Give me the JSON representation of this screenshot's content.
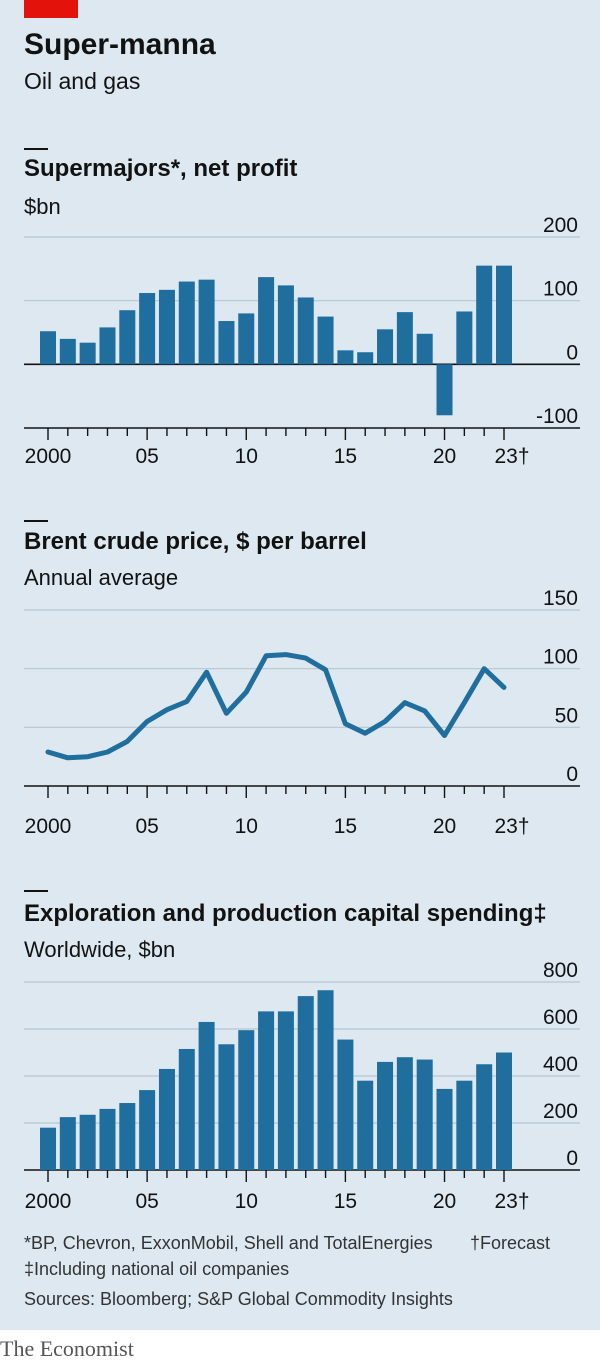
{
  "header": {
    "title": "Super-manna",
    "subtitle": "Oil and gas"
  },
  "chart_data": [
    {
      "type": "bar",
      "title": "Supermajors*, net profit",
      "ylabel": "$bn",
      "x": [
        2000,
        2001,
        2002,
        2003,
        2004,
        2005,
        2006,
        2007,
        2008,
        2009,
        2010,
        2011,
        2012,
        2013,
        2014,
        2015,
        2016,
        2017,
        2018,
        2019,
        2020,
        2021,
        2022,
        2023
      ],
      "values": [
        52,
        40,
        34,
        58,
        85,
        112,
        117,
        130,
        133,
        68,
        80,
        137,
        124,
        105,
        75,
        22,
        19,
        55,
        82,
        48,
        -80,
        83,
        155,
        155
      ],
      "ylim": [
        -100,
        200
      ],
      "yticks": [
        200,
        100,
        0,
        -100
      ],
      "ytick_labels": [
        "200",
        "100",
        "0",
        "-100"
      ],
      "xtick_labels": [
        "2000",
        "05",
        "10",
        "15",
        "20",
        "23†"
      ],
      "xtick_values": [
        2000,
        2005,
        2010,
        2015,
        2020,
        2023
      ],
      "color": "#1f6e9e",
      "grid": true
    },
    {
      "type": "line",
      "title": "Brent crude price, $ per barrel",
      "subtitle": "Annual average",
      "x": [
        2000,
        2001,
        2002,
        2003,
        2004,
        2005,
        2006,
        2007,
        2008,
        2009,
        2010,
        2011,
        2012,
        2013,
        2014,
        2015,
        2016,
        2017,
        2018,
        2019,
        2020,
        2021,
        2022,
        2023
      ],
      "values": [
        29,
        24,
        25,
        29,
        38,
        55,
        65,
        72,
        97,
        62,
        80,
        111,
        112,
        109,
        99,
        53,
        45,
        55,
        71,
        64,
        43,
        71,
        100,
        84
      ],
      "ylim": [
        0,
        150
      ],
      "yticks": [
        150,
        100,
        50,
        0
      ],
      "ytick_labels": [
        "150",
        "100",
        "50",
        "0"
      ],
      "xtick_labels": [
        "2000",
        "05",
        "10",
        "15",
        "20",
        "23†"
      ],
      "xtick_values": [
        2000,
        2005,
        2010,
        2015,
        2020,
        2023
      ],
      "color": "#1f6e9e",
      "grid": true
    },
    {
      "type": "bar",
      "title": "Exploration and production capital spending‡",
      "subtitle": "Worldwide, $bn",
      "x": [
        2000,
        2001,
        2002,
        2003,
        2004,
        2005,
        2006,
        2007,
        2008,
        2009,
        2010,
        2011,
        2012,
        2013,
        2014,
        2015,
        2016,
        2017,
        2018,
        2019,
        2020,
        2021,
        2022,
        2023
      ],
      "values": [
        180,
        225,
        235,
        260,
        285,
        340,
        430,
        515,
        630,
        535,
        595,
        675,
        675,
        740,
        765,
        555,
        380,
        460,
        480,
        470,
        345,
        380,
        450,
        500
      ],
      "ylim": [
        0,
        800
      ],
      "yticks": [
        800,
        600,
        400,
        200,
        0
      ],
      "ytick_labels": [
        "800",
        "600",
        "400",
        "200",
        "0"
      ],
      "xtick_labels": [
        "2000",
        "05",
        "10",
        "15",
        "20",
        "23†"
      ],
      "xtick_values": [
        2000,
        2005,
        2010,
        2015,
        2020,
        2023
      ],
      "color": "#1f6e9e",
      "grid": true
    }
  ],
  "footnotes": {
    "line1a": "*BP, Chevron, ExxonMobil, Shell and TotalEnergies",
    "line1b": "†Forecast",
    "line2": "‡Including national oil companies",
    "sources": "Sources: Bloomberg; S&P Global Commodity Insights"
  },
  "brand": "The Economist"
}
